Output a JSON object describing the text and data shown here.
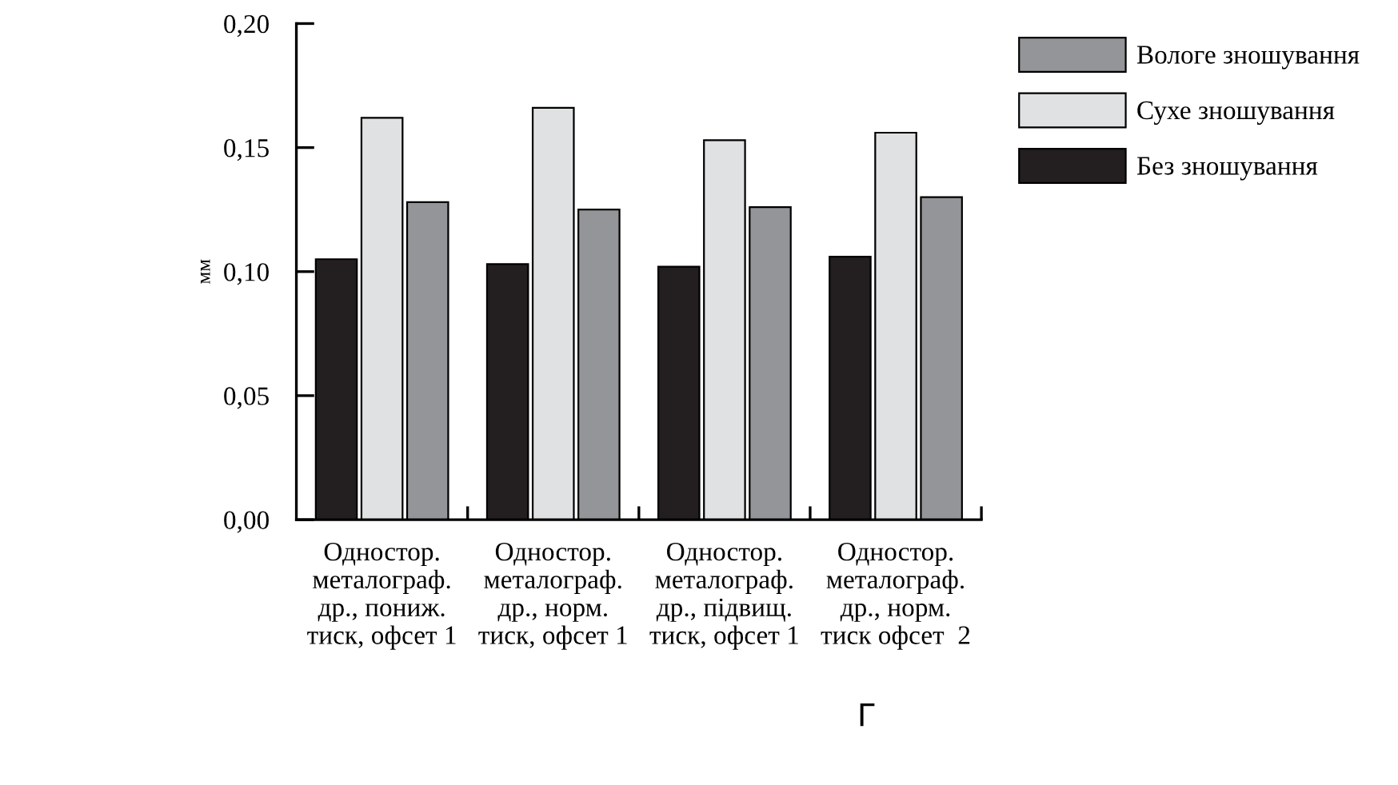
{
  "chart_data": {
    "type": "bar",
    "ylabel": "мм",
    "categories": [
      "Одностор.\nметалограф.\nдр., пониж.\nтиск, офсет 1",
      "Одностор.\nметалограф.\nдр., норм.\nтиск, офсет 1",
      "Одностор.\nметалограф.\nдр., підвищ.\nтиск, офсет 1",
      "Одностор.\nметалограф.\nдр., норм.\nтиск офсет  2"
    ],
    "series": [
      {
        "name": "Без зношування",
        "color": "#231f20",
        "values": [
          0.105,
          0.103,
          0.102,
          0.106
        ]
      },
      {
        "name": "Сухе зношування",
        "color": "#e0e1e3",
        "values": [
          0.162,
          0.166,
          0.153,
          0.156
        ]
      },
      {
        "name": "Вологе зношування",
        "color": "#939598",
        "values": [
          0.128,
          0.125,
          0.126,
          0.13
        ]
      }
    ],
    "ylim": [
      0,
      0.2
    ],
    "yticks": [
      {
        "value": 0,
        "label": "0,00"
      },
      {
        "value": 0.05,
        "label": "0,05"
      },
      {
        "value": 0.1,
        "label": "0,10"
      },
      {
        "value": 0.15,
        "label": "0,15"
      },
      {
        "value": 0.2,
        "label": "0,20"
      }
    ],
    "grid": false,
    "legend": "right",
    "annotations": [
      "Г"
    ]
  }
}
